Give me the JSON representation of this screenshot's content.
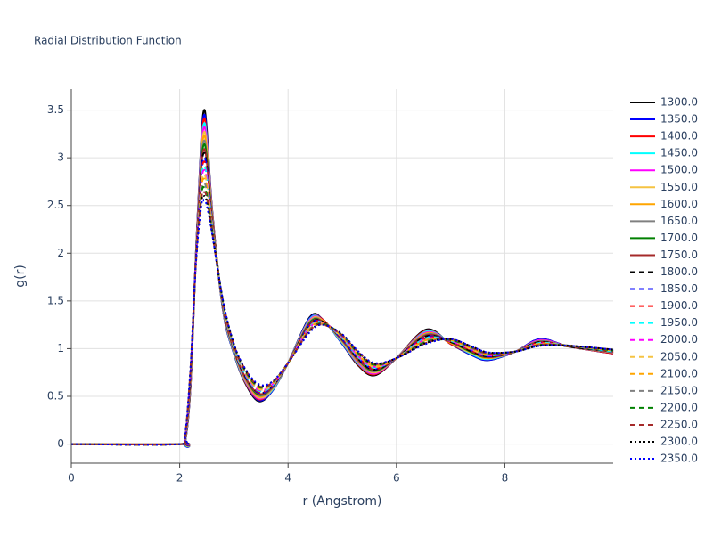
{
  "chart_data": {
    "type": "line",
    "title": "Radial Distribution Function",
    "x_label": "r (Angstrom)",
    "y_label": "g(r)",
    "xlim": [
      0,
      10
    ],
    "ylim": [
      -0.2,
      3.72
    ],
    "xticks": [
      0,
      2,
      4,
      6,
      8
    ],
    "yticks": [
      0,
      0.5,
      1,
      1.5,
      2,
      2.5,
      3,
      3.5
    ],
    "grid": true,
    "legend": "right",
    "x": [
      0,
      2,
      2.1,
      2.2,
      2.3,
      2.4,
      2.45,
      2.5,
      2.6,
      2.8,
      3.0,
      3.2,
      3.45,
      3.7,
      4.0,
      4.4,
      4.65,
      5.0,
      5.3,
      5.6,
      6.0,
      6.55,
      7.0,
      7.4,
      7.7,
      8.2,
      8.65,
      9.2,
      10.0
    ],
    "series": [
      {
        "name": "1300.0",
        "color": "#000000",
        "dash": "solid",
        "values": [
          0,
          0,
          0.02,
          0.6,
          2.0,
          3.2,
          3.5,
          3.3,
          2.45,
          1.4,
          0.95,
          0.65,
          0.45,
          0.55,
          0.85,
          1.33,
          1.3,
          1.05,
          0.82,
          0.72,
          0.9,
          1.2,
          1.05,
          0.93,
          0.88,
          0.97,
          1.1,
          1.02,
          0.95
        ]
      },
      {
        "name": "1350.0",
        "color": "#0000ff",
        "dash": "solid",
        "values": [
          0,
          0,
          0.02,
          0.61,
          2.0,
          3.17,
          3.45,
          3.26,
          2.44,
          1.4,
          0.95,
          0.66,
          0.46,
          0.55,
          0.85,
          1.32,
          1.3,
          1.05,
          0.83,
          0.73,
          0.9,
          1.19,
          1.05,
          0.93,
          0.88,
          0.97,
          1.1,
          1.02,
          0.95
        ]
      },
      {
        "name": "1400.0",
        "color": "#ff0000",
        "dash": "solid",
        "values": [
          0,
          0,
          0.03,
          0.62,
          1.99,
          3.13,
          3.41,
          3.22,
          2.43,
          1.41,
          0.96,
          0.66,
          0.47,
          0.56,
          0.85,
          1.31,
          1.3,
          1.06,
          0.83,
          0.73,
          0.9,
          1.19,
          1.05,
          0.94,
          0.89,
          0.97,
          1.09,
          1.02,
          0.95
        ]
      },
      {
        "name": "1450.0",
        "color": "#00ffff",
        "dash": "solid",
        "values": [
          0,
          0,
          0.03,
          0.63,
          1.99,
          3.1,
          3.36,
          3.19,
          2.41,
          1.41,
          0.96,
          0.67,
          0.48,
          0.56,
          0.85,
          1.31,
          1.29,
          1.06,
          0.84,
          0.74,
          0.9,
          1.18,
          1.06,
          0.94,
          0.89,
          0.97,
          1.09,
          1.02,
          0.96
        ]
      },
      {
        "name": "1500.0",
        "color": "#ff00ff",
        "dash": "solid",
        "values": [
          0,
          0,
          0.04,
          0.64,
          1.98,
          3.07,
          3.32,
          3.15,
          2.4,
          1.42,
          0.97,
          0.68,
          0.48,
          0.57,
          0.85,
          1.3,
          1.29,
          1.07,
          0.85,
          0.74,
          0.9,
          1.17,
          1.06,
          0.95,
          0.9,
          0.97,
          1.09,
          1.02,
          0.96
        ]
      },
      {
        "name": "1550.0",
        "color": "#f5c342",
        "dash": "solid",
        "values": [
          0,
          0,
          0.04,
          0.65,
          1.98,
          3.03,
          3.27,
          3.11,
          2.39,
          1.42,
          0.97,
          0.69,
          0.49,
          0.57,
          0.85,
          1.29,
          1.29,
          1.07,
          0.86,
          0.75,
          0.9,
          1.16,
          1.06,
          0.95,
          0.9,
          0.97,
          1.08,
          1.02,
          0.96
        ]
      },
      {
        "name": "1600.0",
        "color": "#ffa500",
        "dash": "solid",
        "values": [
          0,
          0,
          0.04,
          0.66,
          1.97,
          3.0,
          3.23,
          3.07,
          2.38,
          1.43,
          0.98,
          0.69,
          0.5,
          0.58,
          0.85,
          1.28,
          1.29,
          1.08,
          0.86,
          0.76,
          0.9,
          1.16,
          1.06,
          0.96,
          0.9,
          0.97,
          1.08,
          1.02,
          0.96
        ]
      },
      {
        "name": "1650.0",
        "color": "#808080",
        "dash": "solid",
        "values": [
          0,
          0,
          0.05,
          0.67,
          1.97,
          2.97,
          3.18,
          3.03,
          2.37,
          1.43,
          0.98,
          0.7,
          0.51,
          0.58,
          0.85,
          1.28,
          1.28,
          1.08,
          0.87,
          0.76,
          0.9,
          1.15,
          1.07,
          0.96,
          0.91,
          0.97,
          1.08,
          1.02,
          0.96
        ]
      },
      {
        "name": "1700.0",
        "color": "#008000",
        "dash": "solid",
        "values": [
          0,
          0,
          0.05,
          0.68,
          1.96,
          2.93,
          3.14,
          3.0,
          2.35,
          1.44,
          0.99,
          0.71,
          0.52,
          0.59,
          0.85,
          1.27,
          1.28,
          1.09,
          0.88,
          0.77,
          0.9,
          1.14,
          1.07,
          0.96,
          0.91,
          0.97,
          1.07,
          1.02,
          0.97
        ]
      },
      {
        "name": "1750.0",
        "color": "#a52a2a",
        "dash": "solid",
        "values": [
          0,
          0,
          0.05,
          0.69,
          1.96,
          2.9,
          3.09,
          2.96,
          2.34,
          1.44,
          0.99,
          0.71,
          0.53,
          0.59,
          0.85,
          1.26,
          1.28,
          1.09,
          0.88,
          0.78,
          0.9,
          1.14,
          1.07,
          0.97,
          0.91,
          0.97,
          1.07,
          1.02,
          0.97
        ]
      },
      {
        "name": "1800.0",
        "color": "#000000",
        "dash": "dash",
        "values": [
          0,
          0,
          0.06,
          0.7,
          1.95,
          2.87,
          3.05,
          2.92,
          2.33,
          1.45,
          1.0,
          0.72,
          0.54,
          0.6,
          0.85,
          1.25,
          1.28,
          1.1,
          0.89,
          0.78,
          0.9,
          1.13,
          1.07,
          0.97,
          0.92,
          0.97,
          1.07,
          1.02,
          0.97
        ]
      },
      {
        "name": "1850.0",
        "color": "#0000ff",
        "dash": "dash",
        "values": [
          0,
          0,
          0.06,
          0.7,
          1.95,
          2.83,
          3.0,
          2.88,
          2.32,
          1.45,
          1.0,
          0.73,
          0.54,
          0.6,
          0.85,
          1.25,
          1.27,
          1.1,
          0.9,
          0.79,
          0.9,
          1.12,
          1.08,
          0.98,
          0.92,
          0.97,
          1.06,
          1.03,
          0.97
        ]
      },
      {
        "name": "1900.0",
        "color": "#ff0000",
        "dash": "dash",
        "values": [
          0,
          0,
          0.07,
          0.71,
          1.94,
          2.8,
          2.96,
          2.84,
          2.31,
          1.46,
          1.01,
          0.74,
          0.55,
          0.61,
          0.85,
          1.24,
          1.27,
          1.11,
          0.91,
          0.79,
          0.9,
          1.11,
          1.08,
          0.98,
          0.93,
          0.97,
          1.06,
          1.03,
          0.97
        ]
      },
      {
        "name": "1950.0",
        "color": "#00ffff",
        "dash": "dash",
        "values": [
          0,
          0,
          0.07,
          0.72,
          1.94,
          2.77,
          2.91,
          2.8,
          2.3,
          1.46,
          1.01,
          0.74,
          0.56,
          0.61,
          0.85,
          1.23,
          1.27,
          1.11,
          0.91,
          0.8,
          0.9,
          1.11,
          1.08,
          0.99,
          0.93,
          0.97,
          1.06,
          1.03,
          0.97
        ]
      },
      {
        "name": "2000.0",
        "color": "#ff00ff",
        "dash": "dash",
        "values": [
          0,
          0,
          0.07,
          0.73,
          1.93,
          2.73,
          2.87,
          2.77,
          2.28,
          1.47,
          1.02,
          0.75,
          0.57,
          0.62,
          0.85,
          1.22,
          1.27,
          1.12,
          0.92,
          0.81,
          0.9,
          1.1,
          1.08,
          0.99,
          0.93,
          0.97,
          1.05,
          1.03,
          0.98
        ]
      },
      {
        "name": "2050.0",
        "color": "#f5c342",
        "dash": "dash",
        "values": [
          0,
          0,
          0.08,
          0.74,
          1.93,
          2.7,
          2.82,
          2.73,
          2.27,
          1.47,
          1.02,
          0.76,
          0.58,
          0.62,
          0.85,
          1.22,
          1.26,
          1.12,
          0.93,
          0.81,
          0.9,
          1.09,
          1.09,
          0.99,
          0.94,
          0.97,
          1.05,
          1.03,
          0.98
        ]
      },
      {
        "name": "2100.0",
        "color": "#ffa500",
        "dash": "dash",
        "values": [
          0,
          0,
          0.08,
          0.75,
          1.92,
          2.67,
          2.78,
          2.69,
          2.26,
          1.48,
          1.03,
          0.76,
          0.59,
          0.63,
          0.85,
          1.21,
          1.26,
          1.13,
          0.93,
          0.82,
          0.9,
          1.09,
          1.09,
          1.0,
          0.94,
          0.97,
          1.05,
          1.03,
          0.98
        ]
      },
      {
        "name": "2150.0",
        "color": "#808080",
        "dash": "dash",
        "values": [
          0,
          0,
          0.08,
          0.76,
          1.92,
          2.63,
          2.73,
          2.65,
          2.25,
          1.48,
          1.03,
          0.77,
          0.6,
          0.63,
          0.85,
          1.2,
          1.26,
          1.13,
          0.94,
          0.83,
          0.9,
          1.08,
          1.09,
          1.0,
          0.94,
          0.97,
          1.04,
          1.03,
          0.98
        ]
      },
      {
        "name": "2200.0",
        "color": "#008000",
        "dash": "dash",
        "values": [
          0,
          0,
          0.09,
          0.77,
          1.91,
          2.6,
          2.69,
          2.61,
          2.24,
          1.49,
          1.04,
          0.78,
          0.6,
          0.64,
          0.85,
          1.19,
          1.26,
          1.14,
          0.95,
          0.83,
          0.9,
          1.07,
          1.09,
          1.01,
          0.95,
          0.97,
          1.04,
          1.03,
          0.98
        ]
      },
      {
        "name": "2250.0",
        "color": "#a52a2a",
        "dash": "dash",
        "values": [
          0,
          0,
          0.09,
          0.78,
          1.91,
          2.57,
          2.64,
          2.58,
          2.22,
          1.49,
          1.04,
          0.79,
          0.61,
          0.64,
          0.85,
          1.19,
          1.25,
          1.14,
          0.96,
          0.84,
          0.9,
          1.06,
          1.1,
          1.01,
          0.95,
          0.97,
          1.04,
          1.03,
          0.99
        ]
      },
      {
        "name": "2300.0",
        "color": "#000000",
        "dash": "dot",
        "values": [
          0,
          0,
          0.1,
          0.79,
          1.9,
          2.53,
          2.6,
          2.54,
          2.21,
          1.5,
          1.05,
          0.79,
          0.62,
          0.65,
          0.85,
          1.18,
          1.25,
          1.15,
          0.96,
          0.84,
          0.9,
          1.06,
          1.1,
          1.02,
          0.96,
          0.97,
          1.03,
          1.03,
          0.99
        ]
      },
      {
        "name": "2350.0",
        "color": "#0000ff",
        "dash": "dot",
        "values": [
          0,
          0,
          0.1,
          0.8,
          1.9,
          2.5,
          2.55,
          2.5,
          2.2,
          1.5,
          1.05,
          0.8,
          0.63,
          0.65,
          0.85,
          1.17,
          1.25,
          1.15,
          0.97,
          0.85,
          0.9,
          1.05,
          1.1,
          1.02,
          0.96,
          0.97,
          1.03,
          1.03,
          0.99
        ]
      }
    ]
  }
}
